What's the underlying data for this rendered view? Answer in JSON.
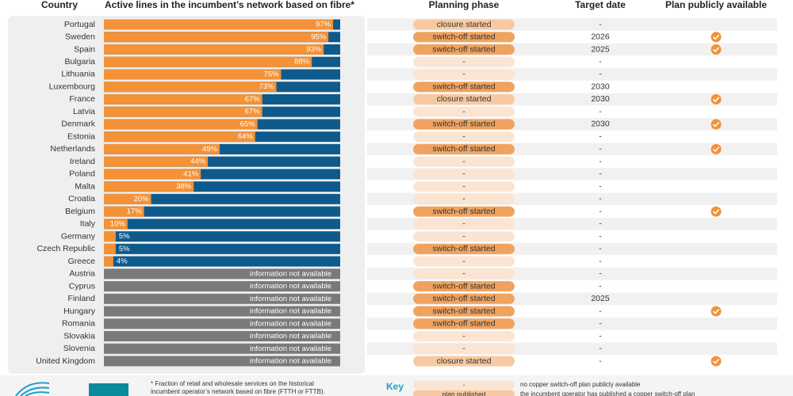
{
  "header": {
    "country": "Country",
    "fibre": "Active lines in the incumbent’s network based on fibre*",
    "phase": "Planning phase",
    "target": "Target date",
    "plan": "Plan publicly available"
  },
  "colors": {
    "fibre": "#f39237",
    "rest": "#0f5a8c",
    "na": "#7a7a7a",
    "none": "#fbe4d2",
    "closure": "#f8c9a0",
    "switch": "#f0a35f",
    "check": "#f39237"
  },
  "rows": [
    {
      "country": "Portugal",
      "fibre": 97,
      "fibre_label": "97%",
      "phase": "closure started",
      "target": "-",
      "plan": false
    },
    {
      "country": "Sweden",
      "fibre": 95,
      "fibre_label": "95%",
      "phase": "switch-off started",
      "target": "2026",
      "plan": true
    },
    {
      "country": "Spain",
      "fibre": 93,
      "fibre_label": "93%",
      "phase": "switch-off started",
      "target": "2025",
      "plan": true
    },
    {
      "country": "Bulgaria",
      "fibre": 88,
      "fibre_label": "88%",
      "phase": "-",
      "target": "-",
      "plan": false
    },
    {
      "country": "Lithuania",
      "fibre": 75,
      "fibre_label": "75%",
      "phase": "-",
      "target": "-",
      "plan": false
    },
    {
      "country": "Luxembourg",
      "fibre": 73,
      "fibre_label": "73%",
      "phase": "switch-off started",
      "target": "2030",
      "plan": false
    },
    {
      "country": "France",
      "fibre": 67,
      "fibre_label": "67%",
      "phase": "closure started",
      "target": "2030",
      "plan": true
    },
    {
      "country": "Latvia",
      "fibre": 67,
      "fibre_label": "67%",
      "phase": "-",
      "target": "-",
      "plan": false
    },
    {
      "country": "Denmark",
      "fibre": 65,
      "fibre_label": "65%",
      "phase": "switch-off started",
      "target": "2030",
      "plan": true
    },
    {
      "country": "Estonia",
      "fibre": 64,
      "fibre_label": "64%",
      "phase": "-",
      "target": "-",
      "plan": false
    },
    {
      "country": "Netherlands",
      "fibre": 49,
      "fibre_label": "49%",
      "phase": "switch-off started",
      "target": "-",
      "plan": true
    },
    {
      "country": "Ireland",
      "fibre": 44,
      "fibre_label": "44%",
      "phase": "-",
      "target": "-",
      "plan": false
    },
    {
      "country": "Poland",
      "fibre": 41,
      "fibre_label": "41%",
      "phase": "-",
      "target": "-",
      "plan": false
    },
    {
      "country": "Malta",
      "fibre": 38,
      "fibre_label": "38%",
      "phase": "-",
      "target": "-",
      "plan": false
    },
    {
      "country": "Croatia",
      "fibre": 20,
      "fibre_label": "20%",
      "phase": "-",
      "target": "-",
      "plan": false
    },
    {
      "country": "Belgium",
      "fibre": 17,
      "fibre_label": "17%",
      "phase": "switch-off started",
      "target": "-",
      "plan": true
    },
    {
      "country": "Italy",
      "fibre": 10,
      "fibre_label": "10%",
      "phase": "-",
      "target": "-",
      "plan": false
    },
    {
      "country": "Germany",
      "fibre": 5,
      "fibre_label": "5%",
      "phase": "-",
      "target": "-",
      "plan": false
    },
    {
      "country": "Czech Republic",
      "fibre": 5,
      "fibre_label": "5%",
      "phase": "switch-off started",
      "target": "-",
      "plan": false
    },
    {
      "country": "Greece",
      "fibre": 4,
      "fibre_label": "4%",
      "phase": "-",
      "target": "-",
      "plan": false
    },
    {
      "country": "Austria",
      "fibre_note": "information not available",
      "phase": "-",
      "target": "-",
      "plan": false
    },
    {
      "country": "Cyprus",
      "fibre_note": "information not available",
      "phase": "switch-off started",
      "target": "-",
      "plan": false
    },
    {
      "country": "Finland",
      "fibre_note": "information not available",
      "phase": "switch-off started",
      "target": "2025",
      "plan": false
    },
    {
      "country": "Hungary",
      "fibre_note": "information not available",
      "phase": "switch-off started",
      "target": "-",
      "plan": true
    },
    {
      "country": "Romania",
      "fibre_note": "information not available",
      "phase": "switch-off started",
      "target": "-",
      "plan": false
    },
    {
      "country": "Slovakia",
      "fibre_note": "information not available",
      "phase": "-",
      "target": "-",
      "plan": false
    },
    {
      "country": "Slovenia",
      "fibre_note": "information not available",
      "phase": "-",
      "target": "-",
      "plan": false
    },
    {
      "country": "United Kingdom",
      "fibre_note": "information not available",
      "phase": "closure started",
      "target": "-",
      "plan": true
    }
  ],
  "footnote": [
    "* Fraction of retail and wholesale services on the historical",
    "incumbent operator’s network based on fibre (FTTH or FTTB)."
  ],
  "key": {
    "title": "Key",
    "items": [
      {
        "swatch": "-",
        "text": "no copper switch-off plan publicly available"
      },
      {
        "swatch": "plan published",
        "text": "the incumbent operator has published a copper switch-off plan"
      }
    ]
  }
}
